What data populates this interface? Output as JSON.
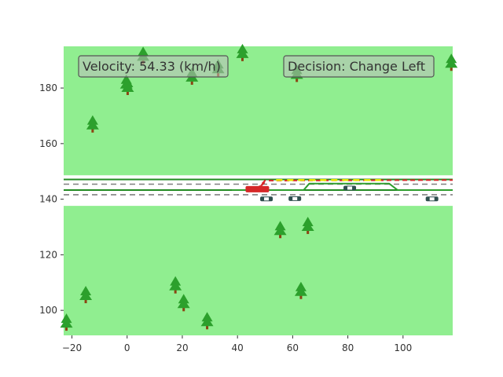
{
  "hud": {
    "velocity_text": "Velocity: 54.33 (km/h)",
    "decision_text": "Decision: Change Left"
  },
  "colors": {
    "grass": "#90EE90",
    "road": "#ffffff",
    "lane_solid": "#228B22",
    "lane_dashed": "#808080",
    "planned_path": "#2e9e2e",
    "ego_car": "#d62728",
    "alt_path_red": "#d62728",
    "alt_path_yellow": "#e8e800",
    "tree_crown": "#2ca02c",
    "tree_trunk": "#8B4513",
    "other_car": "#2f4f4f"
  },
  "world": {
    "x_range": [
      -23,
      118
    ],
    "y_range": [
      91,
      195
    ],
    "x_ticks": [
      "−20",
      "0",
      "20",
      "40",
      "60",
      "80",
      "100"
    ],
    "x_tick_values": [
      -20,
      0,
      20,
      40,
      60,
      80,
      100
    ],
    "y_ticks": [
      "100",
      "120",
      "140",
      "160",
      "180"
    ],
    "y_tick_values": [
      100,
      120,
      140,
      160,
      180
    ],
    "road": {
      "y_bottom": 137.6,
      "y_top": 148.6
    },
    "lane_lines": [
      {
        "y": 147.1,
        "style": "solid"
      },
      {
        "y": 145.4,
        "style": "dashed"
      },
      {
        "y": 143.3,
        "style": "solid"
      },
      {
        "y": 141.6,
        "style": "dashed"
      }
    ],
    "ego": {
      "x": 47.2,
      "y": 143.6,
      "heading": "left-up"
    },
    "planned_path": [
      [
        38,
        143.3
      ],
      [
        64,
        143.3
      ],
      [
        66,
        145.6
      ],
      [
        95,
        145.6
      ],
      [
        98,
        143.3
      ],
      [
        118,
        143.3
      ]
    ],
    "alt_path_red": [
      [
        47,
        143.6
      ],
      [
        50,
        146.7
      ],
      [
        118,
        146.9
      ]
    ],
    "alt_path_yellow": [
      [
        54,
        146.9
      ],
      [
        92,
        146.9
      ]
    ],
    "other_cars": [
      {
        "x": 50.5,
        "y": 140.1
      },
      {
        "x": 60.8,
        "y": 140.2
      },
      {
        "x": 80.7,
        "y": 144.0
      },
      {
        "x": 110.5,
        "y": 140.1
      }
    ],
    "trees": [
      {
        "x": 5.8,
        "y": 191.5
      },
      {
        "x": 41.8,
        "y": 192.5
      },
      {
        "x": 117.5,
        "y": 189.0
      },
      {
        "x": -0.3,
        "y": 181.5
      },
      {
        "x": 0.2,
        "y": 180.3
      },
      {
        "x": 23.5,
        "y": 184.0
      },
      {
        "x": 33.0,
        "y": 187.0
      },
      {
        "x": 61.5,
        "y": 185.0
      },
      {
        "x": -12.5,
        "y": 166.8
      },
      {
        "x": 55.5,
        "y": 128.8
      },
      {
        "x": 65.5,
        "y": 130.3
      },
      {
        "x": 17.5,
        "y": 108.9
      },
      {
        "x": -15.0,
        "y": 105.4
      },
      {
        "x": 63.0,
        "y": 106.9
      },
      {
        "x": 20.5,
        "y": 102.5
      },
      {
        "x": 29.0,
        "y": 96.0
      },
      {
        "x": -22.0,
        "y": 95.5
      }
    ]
  }
}
